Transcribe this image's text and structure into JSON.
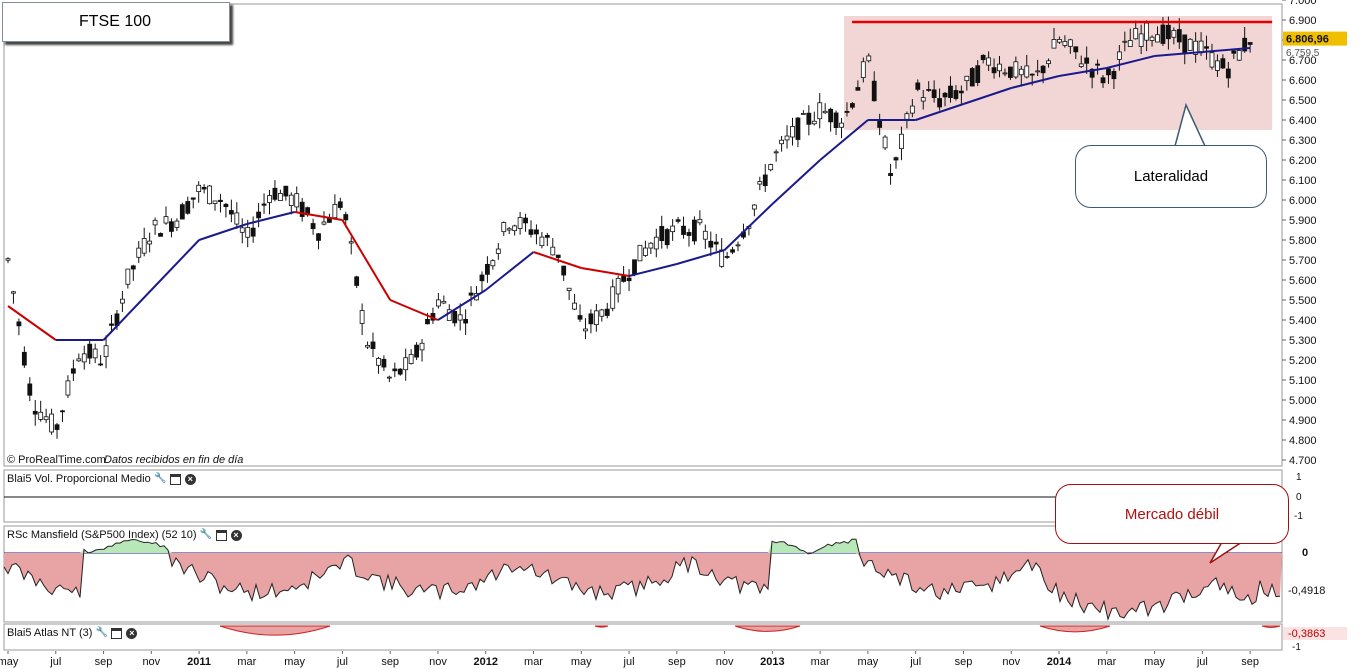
{
  "chart_title": "FTSE 100",
  "source_note": "© ProRealTime.com",
  "source_note_italic": "Datos recibidos en fin de día",
  "price_axis_ticks": [
    "7.000",
    "6.900",
    "6.800",
    "6.700",
    "6.600",
    "6.500",
    "6.400",
    "6.300",
    "6.200",
    "6.100",
    "6.000",
    "5.900",
    "5.800",
    "5.700",
    "5.600",
    "5.500",
    "5.400",
    "5.300",
    "5.200",
    "5.100",
    "5.000",
    "4.900",
    "4.800",
    "4.700"
  ],
  "last_price_label": "6.806,96",
  "sma_label": "6.759,5",
  "annotations": {
    "lateralidad": "Lateralidad",
    "mercado_debil": "Mercado débil"
  },
  "panels": {
    "volume": {
      "title": "Blai5 Vol. Proporcional Medio",
      "ticks": [
        "1",
        "0",
        "-1"
      ]
    },
    "mansfield": {
      "title": "RSc Mansfield (S&P500 Index) (52 10)",
      "ticks": [
        "0",
        "-0,4918"
      ]
    },
    "atlas": {
      "title": "Blai5 Atlas NT (3)",
      "ticks": [
        "-0,3863",
        "-1"
      ]
    }
  },
  "x_axis_labels": [
    {
      "t": "may",
      "bold": false
    },
    {
      "t": "jul",
      "bold": false
    },
    {
      "t": "sep",
      "bold": false
    },
    {
      "t": "nov",
      "bold": false
    },
    {
      "t": "2011",
      "bold": true
    },
    {
      "t": "mar",
      "bold": false
    },
    {
      "t": "may",
      "bold": false
    },
    {
      "t": "jul",
      "bold": false
    },
    {
      "t": "sep",
      "bold": false
    },
    {
      "t": "nov",
      "bold": false
    },
    {
      "t": "2012",
      "bold": true
    },
    {
      "t": "mar",
      "bold": false
    },
    {
      "t": "may",
      "bold": false
    },
    {
      "t": "jul",
      "bold": false
    },
    {
      "t": "sep",
      "bold": false
    },
    {
      "t": "nov",
      "bold": false
    },
    {
      "t": "2013",
      "bold": true
    },
    {
      "t": "mar",
      "bold": false
    },
    {
      "t": "may",
      "bold": false
    },
    {
      "t": "jul",
      "bold": false
    },
    {
      "t": "sep",
      "bold": false
    },
    {
      "t": "nov",
      "bold": false
    },
    {
      "t": "2014",
      "bold": true
    },
    {
      "t": "mar",
      "bold": false
    },
    {
      "t": "may",
      "bold": false
    },
    {
      "t": "jul",
      "bold": false
    },
    {
      "t": "sep",
      "bold": false
    }
  ],
  "colors": {
    "resistance": "#e00000",
    "range_fill": "#f2d6d6",
    "sma_fast": "#cc0000",
    "sma_slow": "#1a1a8c",
    "negative_area": "#e8a4a4",
    "positive_area": "#b8e8b8",
    "price_tag_bg": "#f0c000"
  },
  "chart_data": {
    "type": "candlestick",
    "frequency": "weekly",
    "title": "FTSE 100",
    "y_range": [
      4700,
      7000
    ],
    "resistance_level": 6890,
    "range_box": {
      "low": 6350,
      "high": 6900
    },
    "last_close": 6806.96,
    "sma_last": 6759.5,
    "price_path": [
      {
        "d": "2010-05",
        "v": 5700
      },
      {
        "d": "2010-06",
        "v": 5000
      },
      {
        "d": "2010-07",
        "v": 4850
      },
      {
        "d": "2010-08",
        "v": 5250
      },
      {
        "d": "2010-09",
        "v": 5200
      },
      {
        "d": "2010-10",
        "v": 5600
      },
      {
        "d": "2010-11",
        "v": 5850
      },
      {
        "d": "2010-12",
        "v": 5900
      },
      {
        "d": "2011-01",
        "v": 6050
      },
      {
        "d": "2011-02",
        "v": 6000
      },
      {
        "d": "2011-03",
        "v": 5800
      },
      {
        "d": "2011-04",
        "v": 6050
      },
      {
        "d": "2011-05",
        "v": 6000
      },
      {
        "d": "2011-06",
        "v": 5850
      },
      {
        "d": "2011-07",
        "v": 6000
      },
      {
        "d": "2011-08",
        "v": 5300
      },
      {
        "d": "2011-09",
        "v": 5100
      },
      {
        "d": "2011-10",
        "v": 5200
      },
      {
        "d": "2011-11",
        "v": 5500
      },
      {
        "d": "2011-12",
        "v": 5400
      },
      {
        "d": "2012-01",
        "v": 5650
      },
      {
        "d": "2012-02",
        "v": 5900
      },
      {
        "d": "2012-03",
        "v": 5850
      },
      {
        "d": "2012-04",
        "v": 5750
      },
      {
        "d": "2012-05",
        "v": 5350
      },
      {
        "d": "2012-06",
        "v": 5450
      },
      {
        "d": "2012-07",
        "v": 5650
      },
      {
        "d": "2012-08",
        "v": 5800
      },
      {
        "d": "2012-09",
        "v": 5850
      },
      {
        "d": "2012-10",
        "v": 5850
      },
      {
        "d": "2012-11",
        "v": 5700
      },
      {
        "d": "2012-12",
        "v": 5900
      },
      {
        "d": "2013-01",
        "v": 6200
      },
      {
        "d": "2013-02",
        "v": 6350
      },
      {
        "d": "2013-03",
        "v": 6450
      },
      {
        "d": "2013-04",
        "v": 6400
      },
      {
        "d": "2013-05",
        "v": 6700
      },
      {
        "d": "2013-06",
        "v": 6100
      },
      {
        "d": "2013-07",
        "v": 6550
      },
      {
        "d": "2013-08",
        "v": 6500
      },
      {
        "d": "2013-09",
        "v": 6550
      },
      {
        "d": "2013-10",
        "v": 6700
      },
      {
        "d": "2013-11",
        "v": 6650
      },
      {
        "d": "2013-12",
        "v": 6600
      },
      {
        "d": "2014-01",
        "v": 6800
      },
      {
        "d": "2014-02",
        "v": 6700
      },
      {
        "d": "2014-03",
        "v": 6600
      },
      {
        "d": "2014-04",
        "v": 6800
      },
      {
        "d": "2014-05",
        "v": 6850
      },
      {
        "d": "2014-06",
        "v": 6800
      },
      {
        "d": "2014-07",
        "v": 6750
      },
      {
        "d": "2014-08",
        "v": 6650
      },
      {
        "d": "2014-09",
        "v": 6810
      }
    ],
    "sma_path": [
      {
        "d": "2010-05",
        "v": 5470
      },
      {
        "d": "2010-07",
        "v": 5300
      },
      {
        "d": "2010-09",
        "v": 5300
      },
      {
        "d": "2010-11",
        "v": 5550
      },
      {
        "d": "2011-01",
        "v": 5800
      },
      {
        "d": "2011-03",
        "v": 5880
      },
      {
        "d": "2011-05",
        "v": 5940
      },
      {
        "d": "2011-07",
        "v": 5900
      },
      {
        "d": "2011-09",
        "v": 5500
      },
      {
        "d": "2011-11",
        "v": 5400
      },
      {
        "d": "2012-01",
        "v": 5550
      },
      {
        "d": "2012-03",
        "v": 5740
      },
      {
        "d": "2012-05",
        "v": 5660
      },
      {
        "d": "2012-07",
        "v": 5620
      },
      {
        "d": "2012-09",
        "v": 5680
      },
      {
        "d": "2012-11",
        "v": 5750
      },
      {
        "d": "2013-01",
        "v": 5980
      },
      {
        "d": "2013-03",
        "v": 6200
      },
      {
        "d": "2013-05",
        "v": 6400
      },
      {
        "d": "2013-07",
        "v": 6400
      },
      {
        "d": "2013-09",
        "v": 6480
      },
      {
        "d": "2013-11",
        "v": 6560
      },
      {
        "d": "2014-01",
        "v": 6620
      },
      {
        "d": "2014-03",
        "v": 6660
      },
      {
        "d": "2014-05",
        "v": 6720
      },
      {
        "d": "2014-07",
        "v": 6740
      },
      {
        "d": "2014-09",
        "v": 6760
      }
    ],
    "mansfield_rsc_last": -0.4918,
    "atlas_last": -0.3863
  }
}
